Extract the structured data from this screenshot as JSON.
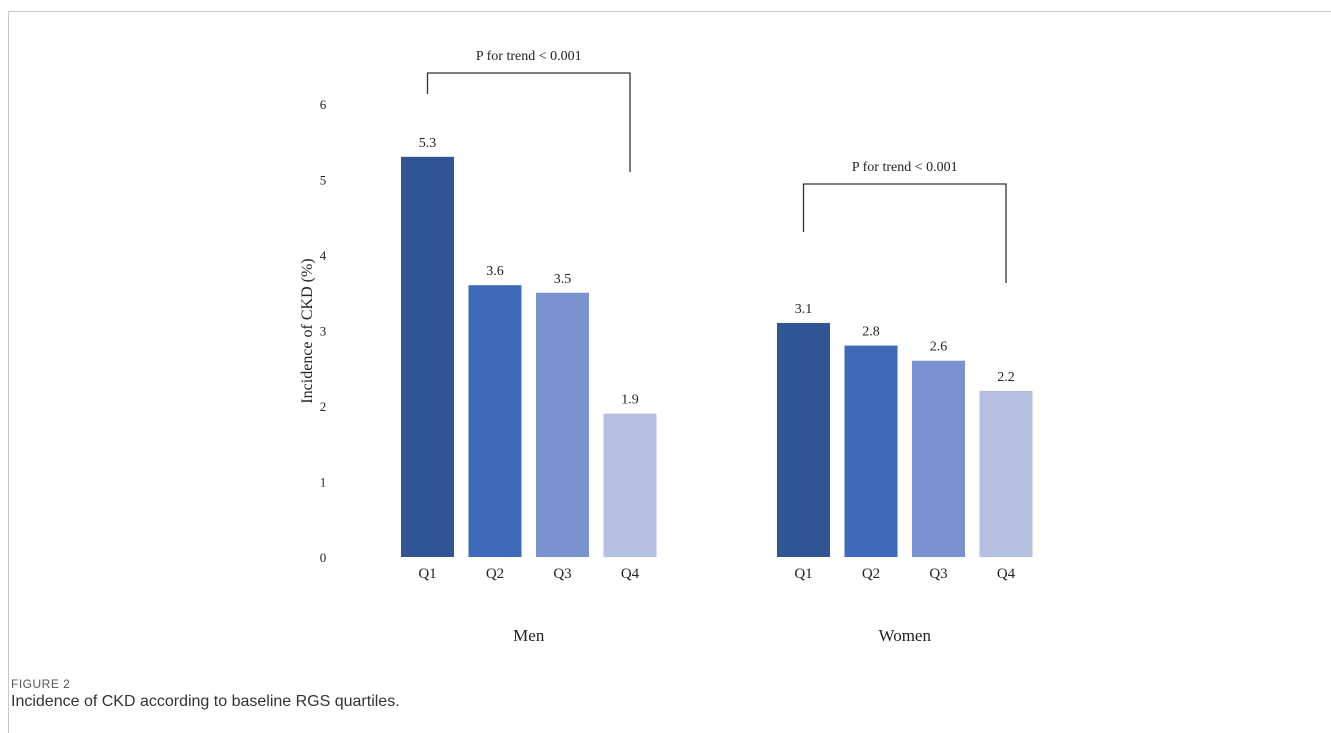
{
  "figure": {
    "label": "FIGURE 2",
    "caption": "Incidence of CKD according to baseline RGS quartiles."
  },
  "chart_data": {
    "type": "bar",
    "ylabel": "Incidence of CKD (%)",
    "ylim": [
      0,
      6
    ],
    "yticks": [
      0,
      1,
      2,
      3,
      4,
      5,
      6
    ],
    "grid": false,
    "legend": "none",
    "categories": [
      "Q1",
      "Q2",
      "Q3",
      "Q4"
    ],
    "colors": [
      "#2f5597",
      "#3c69b8",
      "#7a93d0",
      "#b5c0e0"
    ],
    "groups": [
      {
        "name": "Men",
        "values": [
          5.3,
          3.6,
          3.5,
          1.9
        ],
        "value_labels": [
          "5.3",
          "3.6",
          "3.5",
          "1.9"
        ],
        "annotation": "P for trend < 0.001"
      },
      {
        "name": "Women",
        "values": [
          3.1,
          2.8,
          2.6,
          2.2
        ],
        "value_labels": [
          "3.1",
          "2.8",
          "2.6",
          "2.2"
        ],
        "annotation": "P for trend < 0.001"
      }
    ]
  }
}
